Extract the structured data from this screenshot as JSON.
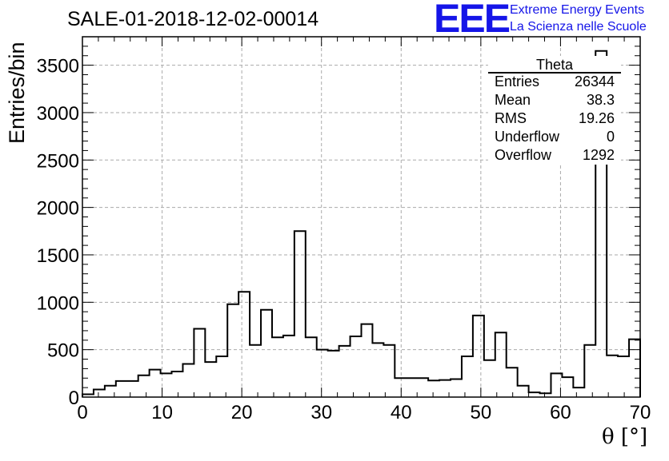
{
  "header": {
    "title": "SALE-01-2018-12-02-00014",
    "logo_mark": "EEE",
    "logo_line1": "Extreme Energy Events",
    "logo_line2": "La Scienza nelle Scuole"
  },
  "stats": {
    "title": "Theta",
    "rows": [
      {
        "key": "Entries",
        "value": "26344"
      },
      {
        "key": "Mean",
        "value": "38.3"
      },
      {
        "key": "RMS",
        "value": "19.26"
      },
      {
        "key": "Underflow",
        "value": "0"
      },
      {
        "key": "Overflow",
        "value": "1292"
      }
    ]
  },
  "colors": {
    "logo": "#1515e8",
    "line": "#000000",
    "grid": "#aaaaaa"
  },
  "chart_data": {
    "type": "bar",
    "style": "step-histogram",
    "xlabel": "θ [°]",
    "ylabel": "Entries/bin",
    "xlim": [
      0,
      70
    ],
    "ylim": [
      0,
      3800
    ],
    "xticks": [
      0,
      10,
      20,
      30,
      40,
      50,
      60,
      70
    ],
    "yticks": [
      0,
      500,
      1000,
      1500,
      2000,
      2500,
      3000,
      3500
    ],
    "grid": true,
    "bin_width": 1.4,
    "bin_edges": [
      0,
      1.4,
      2.8,
      4.2,
      5.6,
      7.0,
      8.4,
      9.8,
      11.2,
      12.6,
      14.0,
      15.4,
      16.8,
      18.2,
      19.6,
      21.0,
      22.4,
      23.8,
      25.2,
      26.6,
      28.0,
      29.4,
      30.8,
      32.2,
      33.6,
      35.0,
      36.4,
      37.8,
      39.2,
      40.6,
      42.0,
      43.4,
      44.8,
      46.2,
      47.6,
      49.0,
      50.4,
      51.8,
      53.2,
      54.6,
      56.0,
      57.4,
      58.8,
      60.2,
      61.6,
      63.0,
      64.4,
      65.8,
      67.2,
      68.6,
      70.0
    ],
    "values": [
      30,
      80,
      120,
      170,
      170,
      230,
      290,
      250,
      270,
      350,
      720,
      370,
      430,
      980,
      1110,
      550,
      920,
      630,
      650,
      1750,
      630,
      500,
      490,
      540,
      640,
      770,
      570,
      550,
      200,
      200,
      200,
      175,
      180,
      190,
      430,
      860,
      390,
      680,
      310,
      120,
      50,
      40,
      250,
      210,
      100,
      550,
      3650,
      440,
      430,
      610
    ]
  }
}
